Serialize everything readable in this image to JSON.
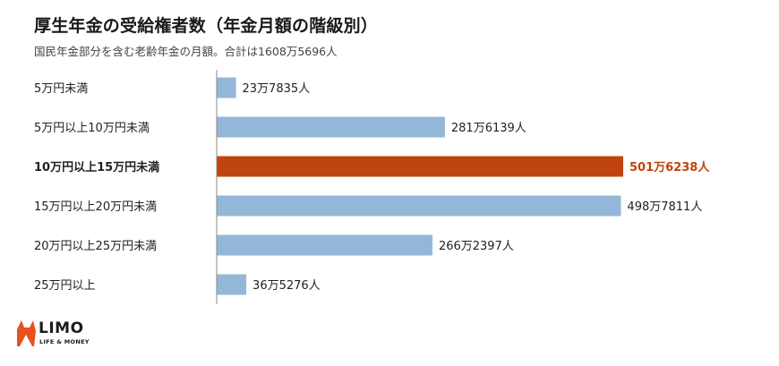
{
  "title": "厚生年金の受給権者数（年金月額の階級別）",
  "subtitle": "国民年金部分を含む老齢年金の月額。合計は1608万5696人",
  "logo": {
    "word": "LIMO",
    "tag": "LIFE & MONEY"
  },
  "colors": {
    "bar": "#93b7d8",
    "highlight": "#c0440e",
    "axis": "#888888"
  },
  "chart_data": {
    "type": "bar",
    "orientation": "horizontal",
    "categories": [
      "5万円未満",
      "5万円以上10万円未満",
      "10万円以上15万円未満",
      "15万円以上20万円未満",
      "20万円以上25万円未満",
      "25万円以上"
    ],
    "values": [
      237835,
      2816139,
      5016238,
      4987811,
      2662397,
      365276
    ],
    "value_labels": [
      "23万7835人",
      "281万6139人",
      "501万6238人",
      "498万7811人",
      "266万2397人",
      "36万5276人"
    ],
    "highlight_index": 2,
    "xlim": [
      0,
      5016238
    ],
    "grid": false
  }
}
